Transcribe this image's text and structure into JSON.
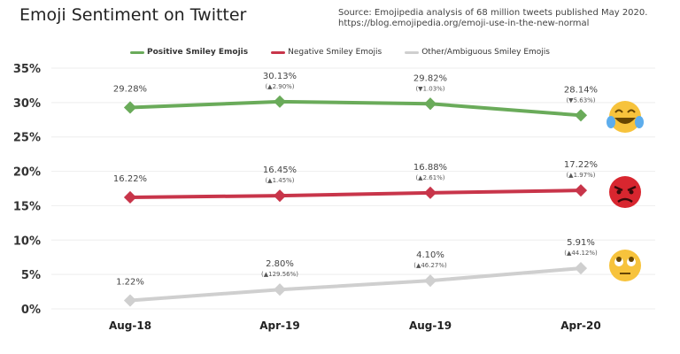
{
  "title": "Emoji Sentiment on Twitter",
  "source_line1": "Source: Emojipedia analysis of 68 million tweets published May 2020.",
  "source_line2": "https://blog.emojipedia.org/emoji-use-in-the-new-normal",
  "chart_data": {
    "type": "line",
    "categories": [
      "Aug-18",
      "Apr-19",
      "Aug-19",
      "Apr-20"
    ],
    "ylim": [
      0,
      35
    ],
    "yticks": [
      "0%",
      "5%",
      "10%",
      "15%",
      "20%",
      "25%",
      "30%",
      "35%"
    ],
    "grid": true,
    "legend_position": "top-center",
    "series": [
      {
        "name": "Positive Smiley Emojis",
        "color": "#6aab5a",
        "emoji": "face-with-tears-of-joy",
        "values": [
          29.28,
          30.13,
          29.82,
          28.14
        ],
        "labels": [
          "29.28%",
          "30.13%",
          "29.82%",
          "28.14%"
        ],
        "changes": [
          "",
          "(▲2.90%)",
          "(▼1.03%)",
          "(▼5.63%)"
        ]
      },
      {
        "name": "Negative Smiley Emojis",
        "color": "#c8354a",
        "emoji": "angry-face",
        "values": [
          16.22,
          16.45,
          16.88,
          17.22
        ],
        "labels": [
          "16.22%",
          "16.45%",
          "16.88%",
          "17.22%"
        ],
        "changes": [
          "",
          "(▲1.45%)",
          "(▲2.61%)",
          "(▲1.97%)"
        ]
      },
      {
        "name": "Other/Ambiguous Smiley Emojis",
        "color": "#cfcfcf",
        "emoji": "face-with-rolling-eyes",
        "values": [
          1.22,
          2.8,
          4.1,
          5.91
        ],
        "labels": [
          "1.22%",
          "2.80%",
          "4.10%",
          "5.91%"
        ],
        "changes": [
          "",
          "(▲129.56%)",
          "(▲46.27%)",
          "(▲44.12%)"
        ]
      }
    ]
  }
}
